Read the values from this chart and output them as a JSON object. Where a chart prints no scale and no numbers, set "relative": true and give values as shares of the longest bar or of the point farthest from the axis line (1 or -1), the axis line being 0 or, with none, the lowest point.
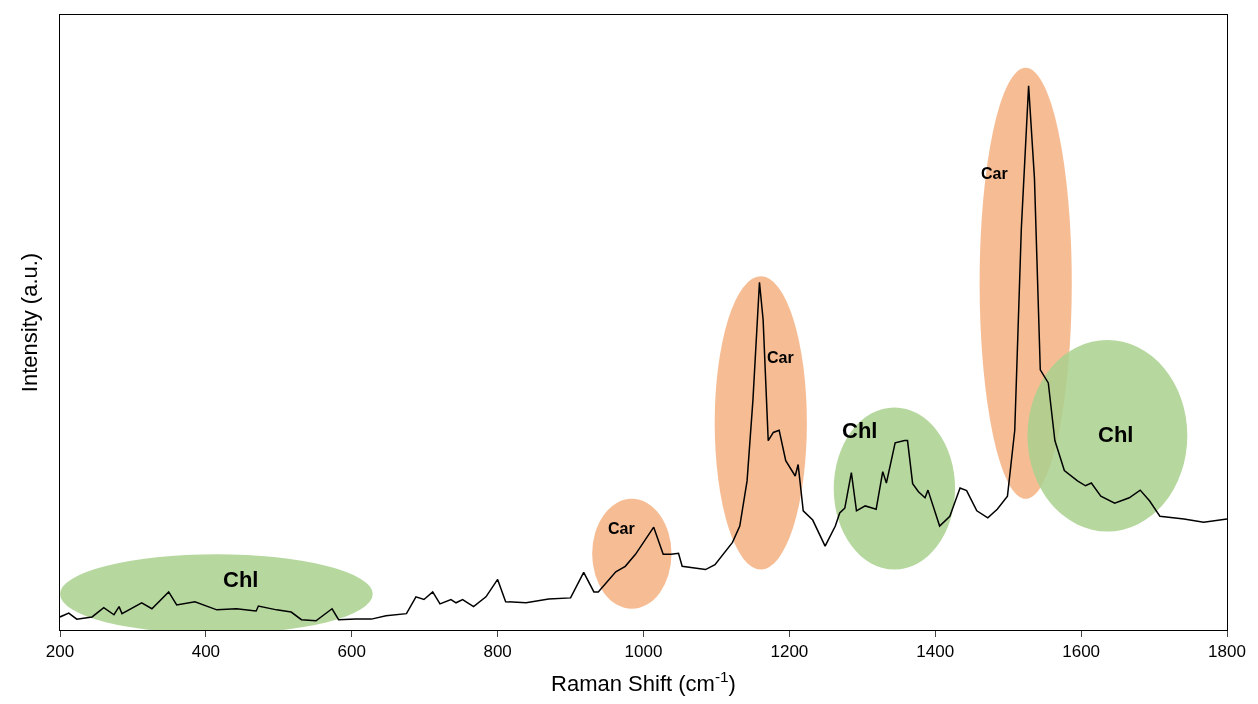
{
  "chart_data": {
    "type": "line",
    "xlabel": "Raman Shift (cm$^{-1}$)",
    "ylabel": "Intensity (a.u.)",
    "relative": true,
    "xlim": [
      200,
      1800
    ],
    "xticks": [
      200,
      400,
      600,
      800,
      1000,
      1200,
      1400,
      1600,
      1800
    ],
    "grid": false,
    "marker": "none",
    "line_style": "solid",
    "series": [
      {
        "color": "#000000",
        "x": [
          200,
          212,
          223,
          244,
          260,
          274,
          281,
          285,
          312,
          326,
          349,
          360,
          385,
          415,
          442,
          469,
          472,
          497,
          517,
          531,
          551,
          573,
          582,
          606,
          627,
          647,
          675,
          688,
          699,
          711,
          721,
          736,
          743,
          752,
          767,
          784,
          800,
          811,
          839,
          870,
          900,
          918,
          932,
          938,
          962,
          975,
          989,
          1014,
          1027,
          1038,
          1048,
          1053,
          1085,
          1098,
          1122,
          1132,
          1142,
          1150,
          1159,
          1164,
          1171,
          1178,
          1186,
          1195,
          1208,
          1212,
          1219,
          1232,
          1249,
          1263,
          1269,
          1276,
          1285,
          1292,
          1304,
          1319,
          1328,
          1333,
          1345,
          1358,
          1362,
          1369,
          1377,
          1386,
          1390,
          1406,
          1420,
          1434,
          1443,
          1457,
          1472,
          1485,
          1499,
          1509,
          1518,
          1528,
          1536,
          1544,
          1555,
          1564,
          1577,
          1595,
          1606,
          1614,
          1627,
          1646,
          1666,
          1681,
          1694,
          1708,
          1741,
          1768,
          1800
        ],
        "values": [
          0.024,
          0.031,
          0.02,
          0.024,
          0.041,
          0.028,
          0.043,
          0.03,
          0.05,
          0.039,
          0.07,
          0.046,
          0.052,
          0.037,
          0.039,
          0.035,
          0.044,
          0.037,
          0.033,
          0.019,
          0.017,
          0.039,
          0.019,
          0.02,
          0.02,
          0.026,
          0.03,
          0.061,
          0.056,
          0.07,
          0.048,
          0.056,
          0.05,
          0.056,
          0.043,
          0.061,
          0.093,
          0.052,
          0.05,
          0.057,
          0.059,
          0.106,
          0.07,
          0.07,
          0.107,
          0.117,
          0.139,
          0.189,
          0.139,
          0.139,
          0.141,
          0.117,
          0.111,
          0.12,
          0.161,
          0.191,
          0.274,
          0.422,
          0.639,
          0.57,
          0.348,
          0.363,
          0.367,
          0.311,
          0.283,
          0.304,
          0.219,
          0.202,
          0.154,
          0.191,
          0.215,
          0.224,
          0.289,
          0.219,
          0.228,
          0.222,
          0.291,
          0.27,
          0.344,
          0.348,
          0.348,
          0.269,
          0.254,
          0.243,
          0.257,
          0.191,
          0.209,
          0.261,
          0.256,
          0.219,
          0.206,
          0.222,
          0.246,
          0.367,
          0.737,
          1.0,
          0.83,
          0.478,
          0.454,
          0.348,
          0.293,
          0.274,
          0.265,
          0.27,
          0.246,
          0.233,
          0.243,
          0.257,
          0.237,
          0.209,
          0.204,
          0.198,
          0.204
        ]
      }
    ],
    "annotations": [
      "Chl",
      "Car",
      "Car",
      "Chl",
      "Car",
      "Chl"
    ]
  }
}
